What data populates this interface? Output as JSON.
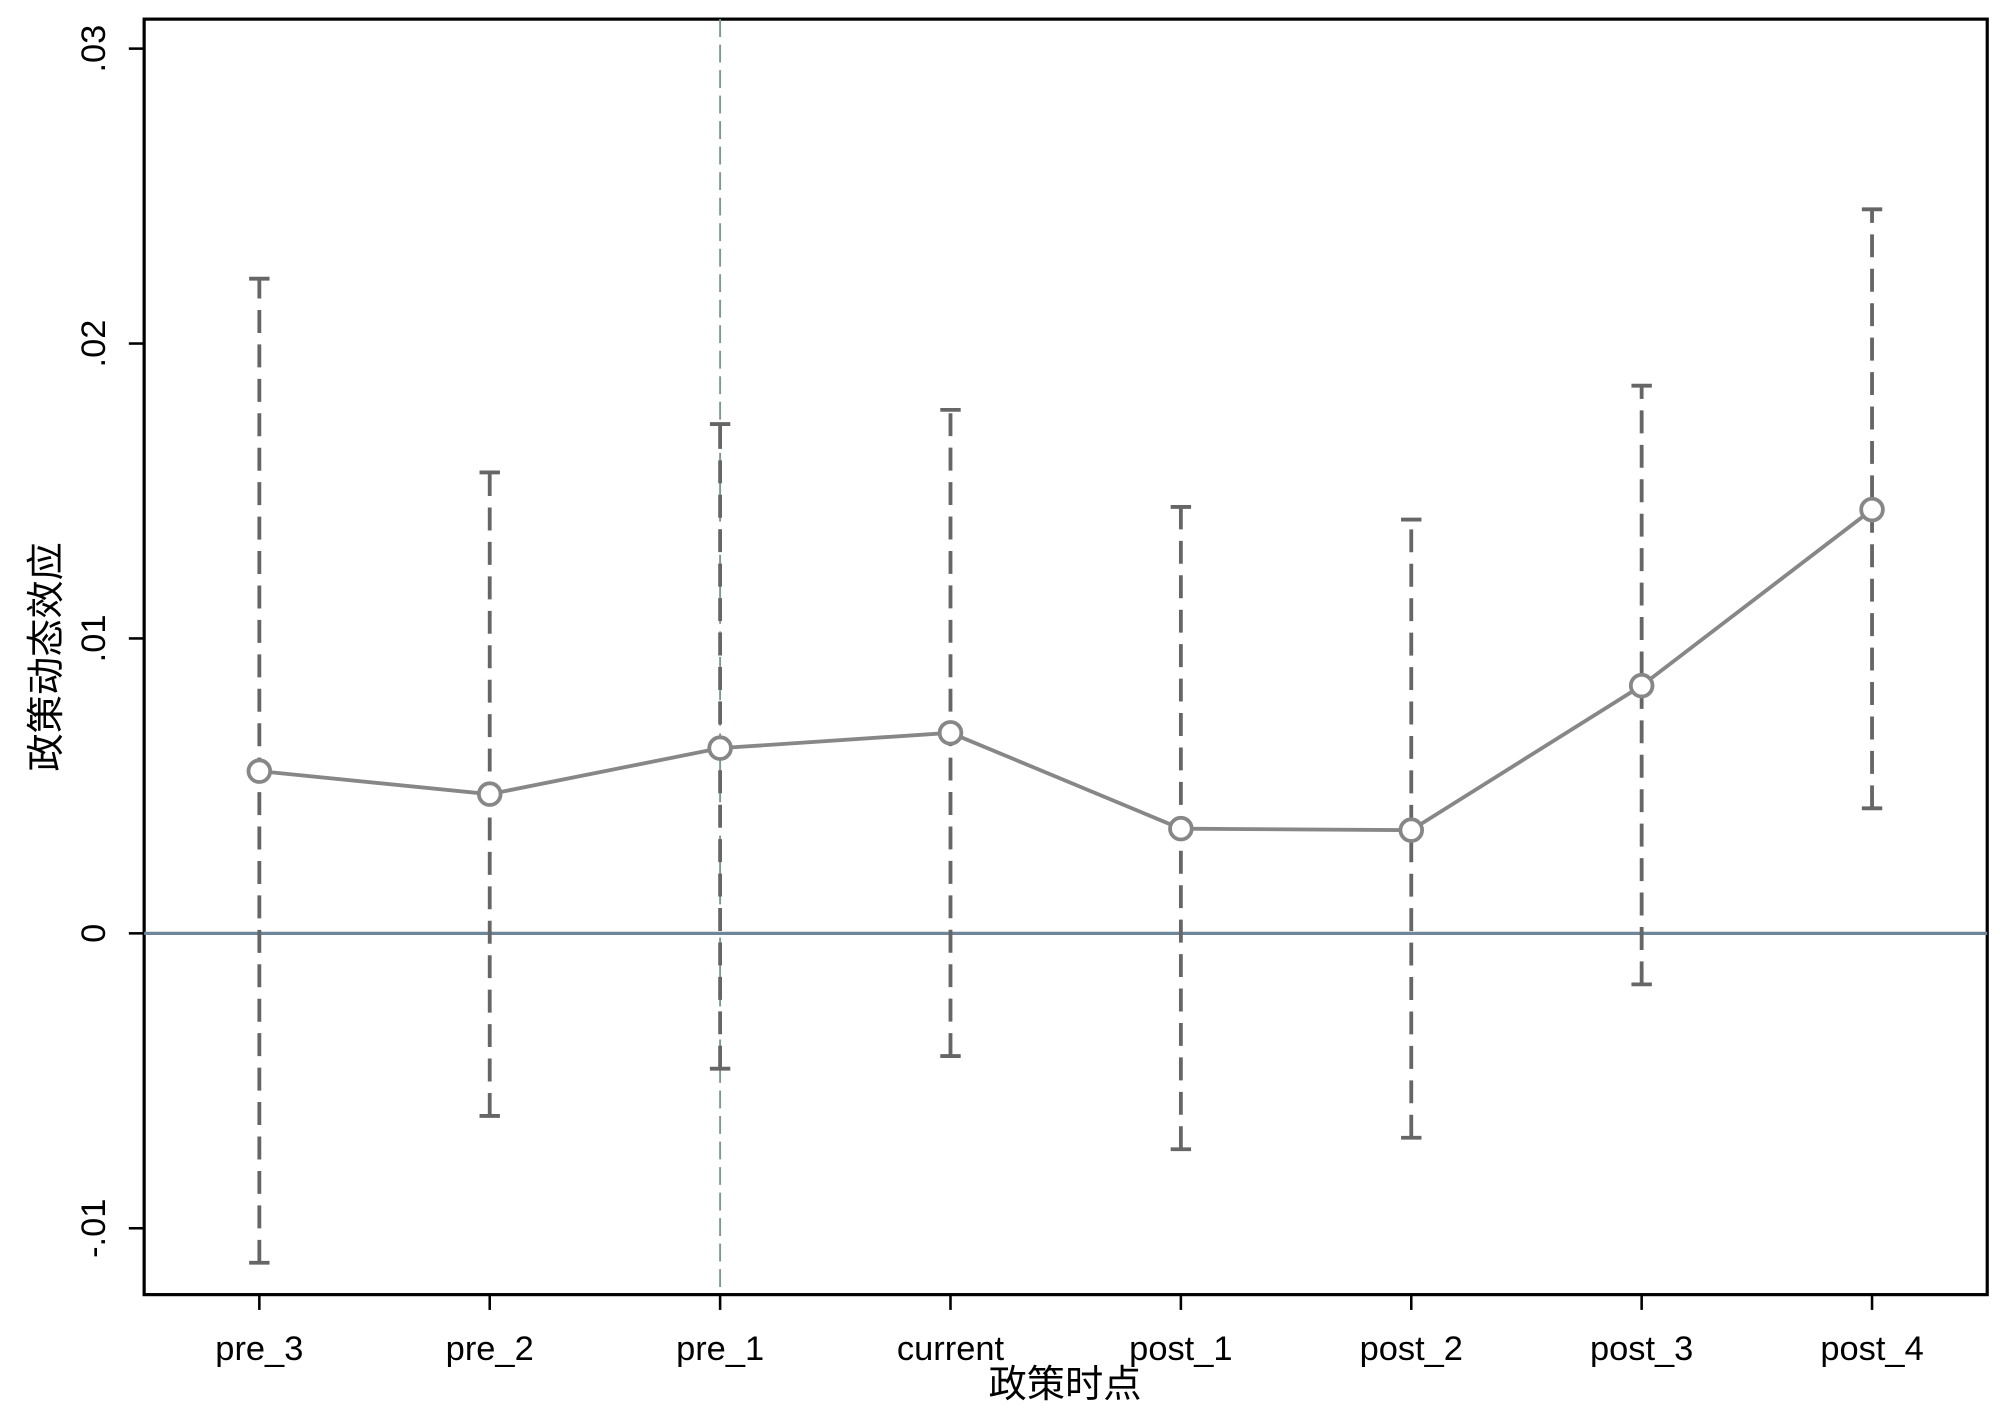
{
  "chart_data": {
    "type": "line",
    "x_label": "政策时点",
    "y_label": "政策动态效应",
    "categories": [
      "pre_3",
      "pre_2",
      "pre_1",
      "current",
      "post_1",
      "post_2",
      "post_3",
      "post_4"
    ],
    "values": [
      0.0055,
      0.00472,
      0.00628,
      0.0068,
      0.00355,
      0.0035,
      0.0084,
      0.01437
    ],
    "ci_lower": [
      -0.01117,
      -0.00619,
      -0.00459,
      -0.00416,
      -0.00732,
      -0.00693,
      -0.00173,
      0.00424
    ],
    "ci_upper": [
      0.0222,
      0.01563,
      0.01727,
      0.01775,
      0.01446,
      0.01403,
      0.01857,
      0.02455
    ],
    "color": "#878787",
    "ci_color": "#666666",
    "ylim": [
      -0.01225,
      0.031
    ],
    "yticks": [
      {
        "value": -0.01,
        "label": "-.01"
      },
      0,
      {
        "value": 0.01,
        "label": ".01"
      },
      {
        "value": 0.02,
        "label": ".02"
      },
      {
        "value": 0.03,
        "label": ".03"
      }
    ],
    "hline": 0,
    "hline_color": "#6e859a",
    "xline": "pre_1",
    "xline_color": "#7a9a8e"
  }
}
